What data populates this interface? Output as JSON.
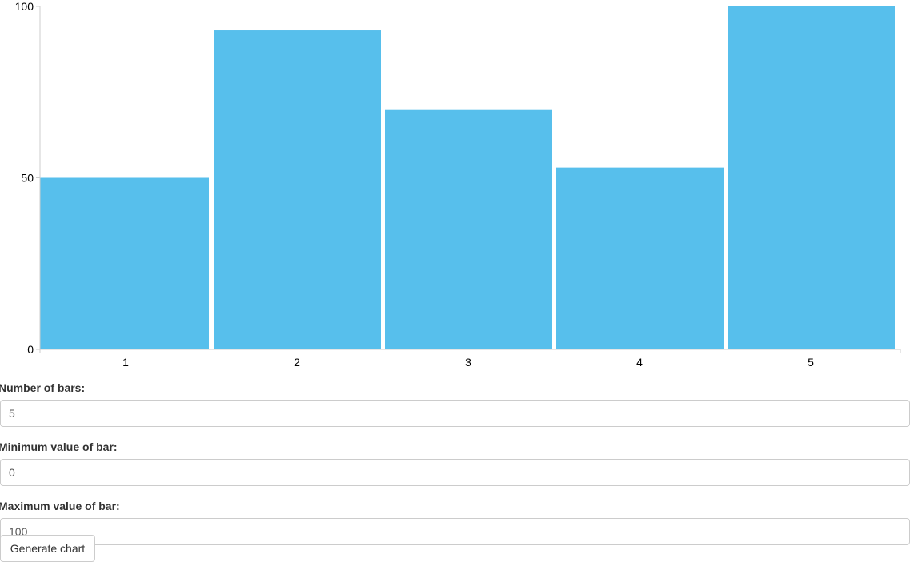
{
  "chart_data": {
    "type": "bar",
    "categories": [
      "1",
      "2",
      "3",
      "4",
      "5"
    ],
    "values": [
      50,
      93,
      70,
      53,
      100
    ],
    "ylim": [
      0,
      100
    ],
    "yticks": [
      "0",
      "50",
      "100"
    ],
    "color": "#57bfec",
    "grid": false
  },
  "form": {
    "bars_label": "Number of bars:",
    "bars_value": "5",
    "min_label": "Minimum value of bar:",
    "min_value": "0",
    "max_label": "Maximum value of bar:",
    "max_value": "100",
    "generate_label": "Generate chart"
  }
}
